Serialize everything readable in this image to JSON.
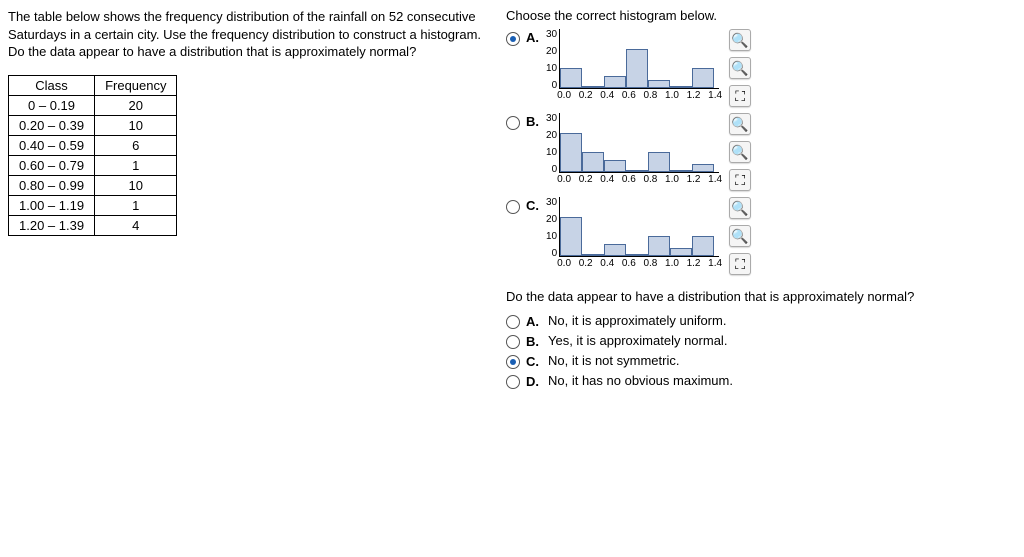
{
  "problem_text": "The table below shows the frequency distribution of the rainfall on 52 consecutive Saturdays in a certain city. Use the frequency distribution to construct a histogram. Do the data appear to have a distribution that is approximately normal?",
  "freq_table": {
    "headers": [
      "Class",
      "Frequency"
    ],
    "rows": [
      [
        "0 – 0.19",
        "20"
      ],
      [
        "0.20 – 0.39",
        "10"
      ],
      [
        "0.40 – 0.59",
        "6"
      ],
      [
        "0.60 – 0.79",
        "1"
      ],
      [
        "0.80 – 0.99",
        "10"
      ],
      [
        "1.00 – 1.19",
        "1"
      ],
      [
        "1.20 – 1.39",
        "4"
      ]
    ]
  },
  "right_title": "Choose the correct histogram below.",
  "y_ticks": [
    "30",
    "20",
    "10",
    "0"
  ],
  "x_ticks": [
    "0.0",
    "0.2",
    "0.4",
    "0.6",
    "0.8",
    "1.0",
    "1.2",
    "1.4"
  ],
  "y_max": 30,
  "histograms": {
    "A": {
      "letter": "A.",
      "selected": true,
      "values": [
        10,
        1,
        6,
        20,
        4,
        1,
        10
      ]
    },
    "B": {
      "letter": "B.",
      "selected": false,
      "values": [
        20,
        10,
        6,
        1,
        10,
        1,
        4
      ]
    },
    "C": {
      "letter": "C.",
      "selected": false,
      "values": [
        20,
        1,
        6,
        1,
        10,
        4,
        10
      ]
    }
  },
  "q2_text": "Do the data appear to have a distribution that is approximately normal?",
  "answers": {
    "A": {
      "letter": "A.",
      "text": "No, it is approximately uniform.",
      "selected": false
    },
    "B": {
      "letter": "B.",
      "text": "Yes, it is approximately normal.",
      "selected": false
    },
    "C": {
      "letter": "C.",
      "text": "No, it is not symmetric.",
      "selected": true
    },
    "D": {
      "letter": "D.",
      "text": "No, it has no obvious maximum.",
      "selected": false
    }
  },
  "colors": {
    "bar_fill": "#c7d3e6",
    "bar_border": "#4a6a9a",
    "radio_selected": "#1a5fb4"
  }
}
